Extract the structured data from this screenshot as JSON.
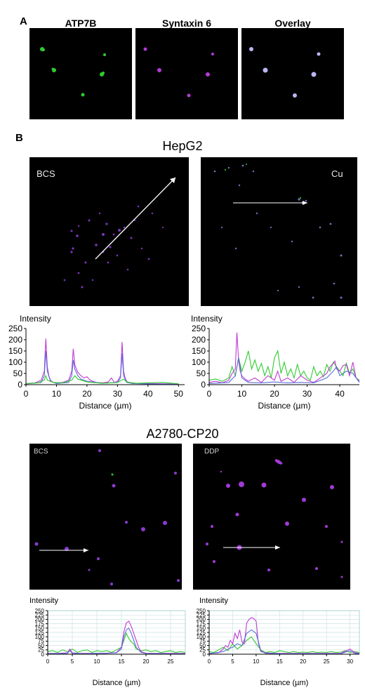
{
  "panel_a": {
    "letter": "A",
    "titles": [
      "ATP7B",
      "Syntaxin 6",
      "Overlay"
    ]
  },
  "panel_b": {
    "letter": "B",
    "hepg2": {
      "title": "HepG2",
      "left_label": "BCS",
      "right_label": "Cu"
    },
    "a2780": {
      "title": "A2780-CP20",
      "left_label": "BCS",
      "right_label": "DDP"
    }
  },
  "colors": {
    "green": "#2ecc2e",
    "magenta": "#c23ad6",
    "blue": "#5a6fd8",
    "overlay": "#b9b6f2"
  },
  "chart_data": [
    {
      "id": "hepg2-bcs",
      "type": "line",
      "ylabel": "Intensity",
      "xlabel": "Distance (µm)",
      "xlim": [
        0,
        52
      ],
      "ylim": [
        0,
        250
      ],
      "xticks": [
        0,
        10,
        20,
        30,
        40,
        50
      ],
      "yticks": [
        0,
        50,
        100,
        150,
        200,
        250
      ],
      "grid": false,
      "series": [
        {
          "color": "#c23ad6",
          "x": [
            0,
            3,
            5,
            6,
            6.5,
            7,
            7.5,
            8,
            9,
            10,
            12,
            14,
            15,
            15.5,
            16,
            16.5,
            17,
            18,
            19,
            20,
            21,
            22,
            23,
            25,
            27,
            28,
            29,
            30,
            31,
            31.5,
            32,
            32.5,
            33,
            34,
            36,
            40,
            45,
            50
          ],
          "y": [
            5,
            8,
            20,
            60,
            205,
            80,
            40,
            20,
            10,
            8,
            10,
            20,
            60,
            160,
            90,
            70,
            55,
            40,
            30,
            35,
            20,
            15,
            10,
            8,
            12,
            30,
            10,
            15,
            40,
            190,
            60,
            30,
            15,
            8,
            6,
            5,
            4,
            3
          ]
        },
        {
          "color": "#5a6fd8",
          "x": [
            0,
            5,
            6,
            6.5,
            7,
            8,
            10,
            14,
            15,
            15.5,
            16,
            17,
            18,
            20,
            25,
            30,
            31,
            31.5,
            32,
            33,
            35,
            40,
            50
          ],
          "y": [
            3,
            10,
            40,
            150,
            60,
            15,
            5,
            10,
            40,
            110,
            70,
            40,
            25,
            15,
            6,
            10,
            30,
            140,
            40,
            10,
            5,
            3,
            2
          ]
        },
        {
          "color": "#2ecc2e",
          "x": [
            0,
            4,
            6,
            6.5,
            7,
            9,
            12,
            15,
            16,
            17,
            20,
            25,
            30,
            32,
            33,
            36,
            40,
            45,
            48,
            50
          ],
          "y": [
            4,
            8,
            20,
            40,
            20,
            10,
            8,
            20,
            40,
            25,
            12,
            6,
            10,
            25,
            12,
            6,
            8,
            10,
            6,
            4
          ]
        }
      ]
    },
    {
      "id": "hepg2-cu",
      "type": "line",
      "ylabel": "Intensity",
      "xlabel": "Distance (µm)",
      "xlim": [
        0,
        46
      ],
      "ylim": [
        0,
        250
      ],
      "xticks": [
        0,
        10,
        20,
        30,
        40
      ],
      "yticks": [
        0,
        50,
        100,
        150,
        200,
        250
      ],
      "grid": false,
      "series": [
        {
          "color": "#2ecc2e",
          "x": [
            0,
            2,
            4,
            6,
            7,
            8,
            9,
            10,
            11,
            12,
            13,
            14,
            15,
            16,
            17,
            18,
            19,
            20,
            21,
            22,
            23,
            24,
            25,
            26,
            27,
            28,
            29,
            30,
            31,
            32,
            33,
            34,
            35,
            36,
            37,
            38,
            39,
            40,
            41,
            42,
            43,
            44,
            45,
            46
          ],
          "y": [
            20,
            25,
            15,
            30,
            80,
            40,
            120,
            60,
            100,
            150,
            70,
            110,
            60,
            95,
            40,
            80,
            30,
            120,
            150,
            50,
            100,
            40,
            70,
            30,
            90,
            40,
            60,
            30,
            20,
            80,
            40,
            60,
            35,
            90,
            60,
            100,
            80,
            60,
            40,
            95,
            50,
            70,
            30,
            20
          ]
        },
        {
          "color": "#c23ad6",
          "x": [
            0,
            2,
            4,
            6,
            7,
            8,
            8.5,
            9,
            9.5,
            10,
            11,
            12,
            14,
            16,
            18,
            20,
            21,
            22,
            24,
            26,
            28,
            30,
            32,
            34,
            36,
            37,
            38,
            38.5,
            39,
            40,
            41,
            42,
            43,
            44,
            45,
            46
          ],
          "y": [
            10,
            15,
            8,
            20,
            50,
            70,
            232,
            110,
            60,
            40,
            25,
            15,
            30,
            10,
            40,
            20,
            60,
            15,
            30,
            10,
            40,
            20,
            10,
            30,
            50,
            80,
            95,
            105,
            70,
            60,
            85,
            90,
            40,
            100,
            30,
            15
          ]
        },
        {
          "color": "#5a6fd8",
          "x": [
            0,
            4,
            6,
            8,
            9,
            10,
            12,
            16,
            20,
            24,
            28,
            32,
            36,
            38,
            39,
            40,
            42,
            44,
            46
          ],
          "y": [
            5,
            8,
            10,
            40,
            120,
            30,
            10,
            8,
            12,
            8,
            10,
            8,
            30,
            60,
            80,
            40,
            60,
            50,
            10
          ]
        }
      ]
    },
    {
      "id": "a2780-bcs",
      "type": "line",
      "ylabel": "Intensity",
      "xlabel": "Distance (µm)",
      "xlim": [
        0,
        28
      ],
      "ylim": [
        0,
        250
      ],
      "xticks": [
        0,
        5,
        10,
        15,
        20,
        25
      ],
      "yticks": [
        0,
        25,
        50,
        75,
        100,
        125,
        150,
        175,
        200,
        225,
        250
      ],
      "grid": true,
      "series": [
        {
          "color": "#2ecc2e",
          "x": [
            0,
            1,
            2,
            3,
            4,
            5,
            6,
            7,
            8,
            9,
            10,
            11,
            12,
            13,
            14,
            15,
            15.5,
            16,
            16.5,
            17,
            17.5,
            18,
            19,
            20,
            21,
            22,
            23,
            24,
            25,
            26,
            27,
            28
          ],
          "y": [
            15,
            20,
            10,
            25,
            15,
            30,
            10,
            20,
            25,
            10,
            20,
            15,
            20,
            10,
            25,
            40,
            80,
            120,
            90,
            70,
            60,
            30,
            20,
            25,
            15,
            20,
            10,
            15,
            20,
            10,
            15,
            10
          ]
        },
        {
          "color": "#c23ad6",
          "x": [
            0,
            2,
            4,
            4.5,
            5,
            6,
            8,
            10,
            12,
            14,
            15,
            15.5,
            16,
            16.5,
            17,
            17.5,
            18,
            18.5,
            19,
            20,
            22,
            24,
            26,
            28
          ],
          "y": [
            5,
            5,
            8,
            30,
            8,
            5,
            5,
            5,
            5,
            10,
            40,
            130,
            180,
            190,
            160,
            120,
            80,
            40,
            15,
            5,
            5,
            5,
            5,
            5
          ]
        },
        {
          "color": "#5a6fd8",
          "x": [
            0,
            4,
            4.5,
            5,
            8,
            14,
            15,
            15.5,
            16,
            16.5,
            17,
            17.5,
            18,
            19,
            20,
            24,
            28
          ],
          "y": [
            3,
            5,
            20,
            5,
            3,
            8,
            30,
            100,
            140,
            150,
            120,
            80,
            40,
            10,
            4,
            3,
            3
          ]
        }
      ]
    },
    {
      "id": "a2780-ddp",
      "type": "line",
      "ylabel": "Intensity",
      "xlabel": "Distance (µm)",
      "xlim": [
        0,
        32
      ],
      "ylim": [
        0,
        250
      ],
      "xticks": [
        0,
        5,
        10,
        15,
        20,
        25,
        30
      ],
      "yticks": [
        0,
        25,
        50,
        75,
        100,
        125,
        150,
        175,
        200,
        225,
        250
      ],
      "grid": true,
      "series": [
        {
          "color": "#2ecc2e",
          "x": [
            0,
            1,
            2,
            3,
            4,
            5,
            6,
            7,
            8,
            9,
            10,
            11,
            12,
            13,
            14,
            15,
            16,
            17,
            18,
            19,
            20,
            21,
            22,
            23,
            24,
            25,
            26,
            27,
            28,
            29,
            30,
            31,
            32
          ],
          "y": [
            15,
            10,
            25,
            40,
            20,
            60,
            30,
            50,
            80,
            100,
            60,
            25,
            10,
            15,
            10,
            20,
            15,
            10,
            15,
            10,
            12,
            10,
            15,
            10,
            12,
            10,
            15,
            10,
            12,
            20,
            10,
            15,
            10
          ]
        },
        {
          "color": "#c23ad6",
          "x": [
            0,
            2,
            3,
            3.5,
            4,
            4.5,
            5,
            5.5,
            6,
            6.5,
            7,
            7.5,
            8,
            8.5,
            9,
            9.5,
            10,
            10.5,
            11,
            12,
            14,
            16,
            18,
            20,
            24,
            28,
            30,
            31,
            32
          ],
          "y": [
            5,
            8,
            30,
            50,
            40,
            80,
            60,
            120,
            90,
            140,
            70,
            60,
            180,
            200,
            210,
            205,
            190,
            60,
            15,
            8,
            5,
            5,
            5,
            5,
            5,
            5,
            30,
            10,
            5
          ]
        },
        {
          "color": "#5a6fd8",
          "x": [
            0,
            3,
            4,
            5,
            6,
            7,
            8,
            9,
            10,
            11,
            12,
            16,
            20,
            24,
            28,
            30,
            31,
            32
          ],
          "y": [
            3,
            15,
            30,
            40,
            60,
            50,
            120,
            140,
            120,
            20,
            5,
            3,
            3,
            3,
            3,
            20,
            5,
            3
          ]
        }
      ]
    }
  ]
}
